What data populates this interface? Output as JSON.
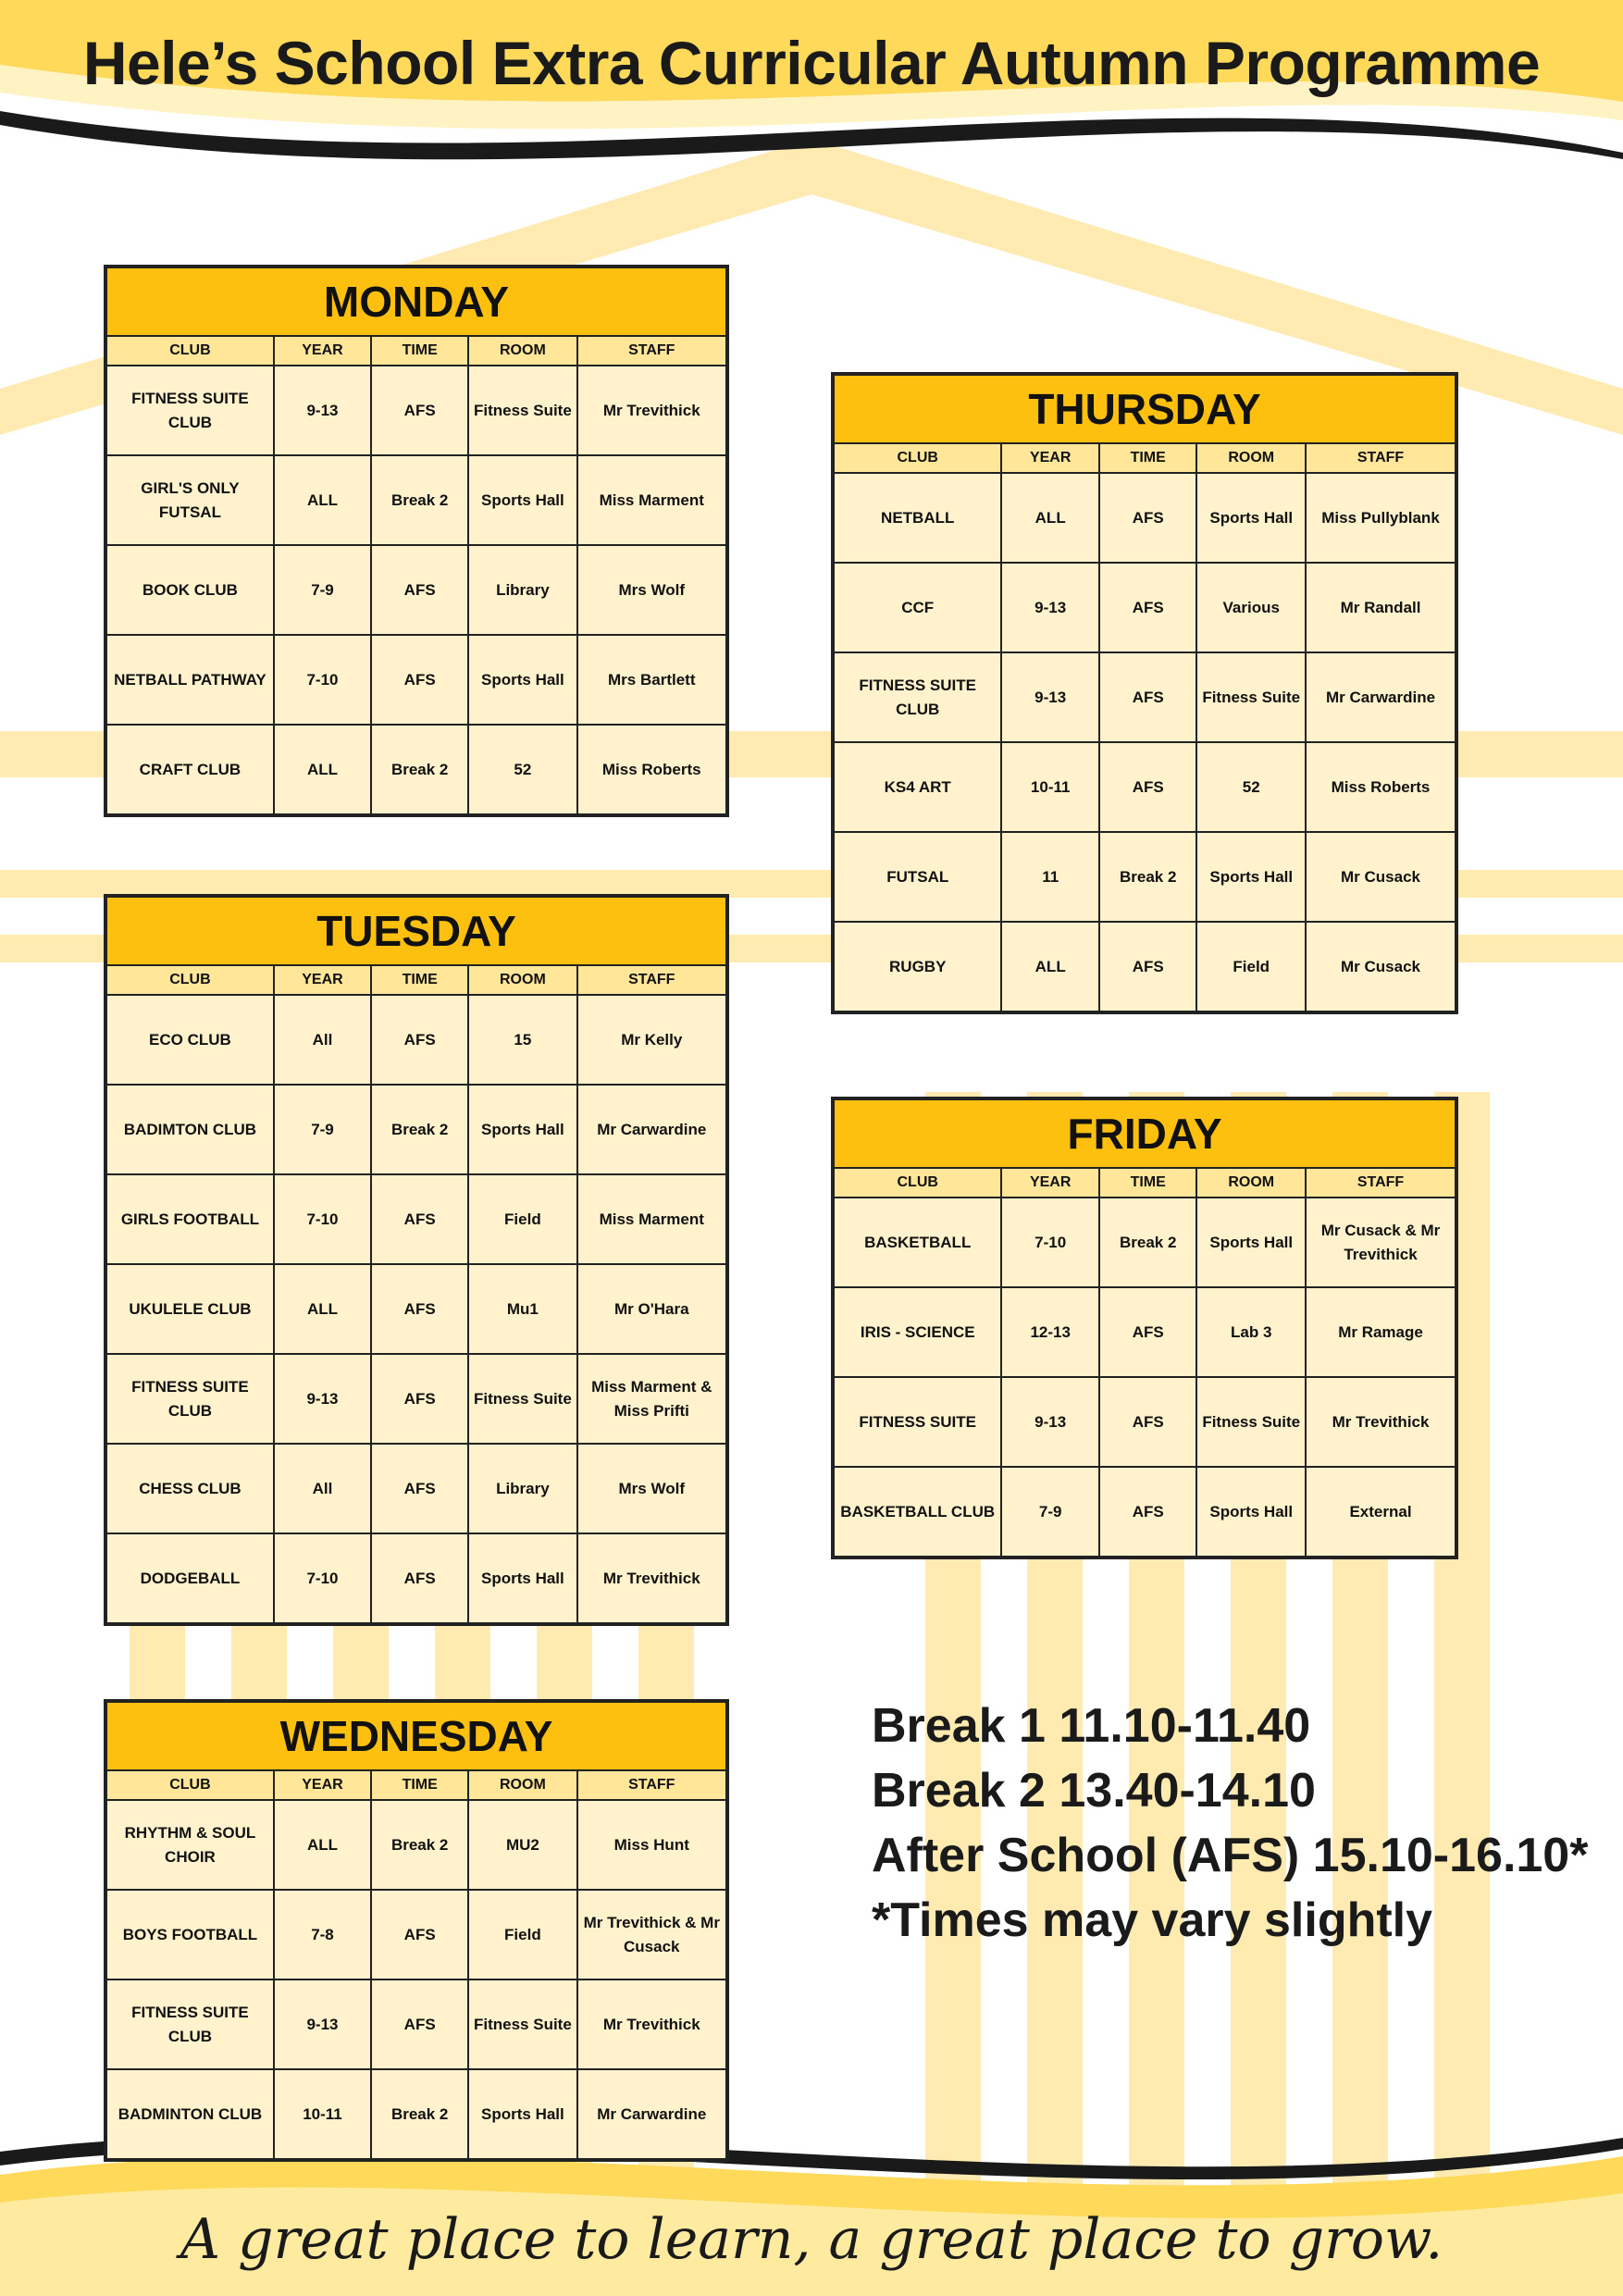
{
  "title": "Hele’s School Extra Curricular Autumn Programme",
  "columns": [
    "CLUB",
    "YEAR",
    "TIME",
    "ROOM",
    "STAFF"
  ],
  "days": [
    {
      "name": "MONDAY",
      "rows": [
        [
          "FITNESS SUITE CLUB",
          "9-13",
          "AFS",
          "Fitness Suite",
          "Mr Trevithick"
        ],
        [
          "GIRL'S ONLY FUTSAL",
          "ALL",
          "Break 2",
          "Sports Hall",
          "Miss Marment"
        ],
        [
          "BOOK CLUB",
          "7-9",
          "AFS",
          "Library",
          "Mrs Wolf"
        ],
        [
          "NETBALL PATHWAY",
          "7-10",
          "AFS",
          "Sports Hall",
          "Mrs Bartlett"
        ],
        [
          "CRAFT CLUB",
          "ALL",
          "Break 2",
          "52",
          "Miss Roberts"
        ]
      ]
    },
    {
      "name": "TUESDAY",
      "rows": [
        [
          "ECO CLUB",
          "All",
          "AFS",
          "15",
          "Mr Kelly"
        ],
        [
          "BADIMTON CLUB",
          "7-9",
          "Break 2",
          "Sports Hall",
          "Mr Carwardine"
        ],
        [
          "GIRLS FOOTBALL",
          "7-10",
          "AFS",
          "Field",
          "Miss Marment"
        ],
        [
          "UKULELE CLUB",
          "ALL",
          "AFS",
          "Mu1",
          "Mr O'Hara"
        ],
        [
          "FITNESS SUITE CLUB",
          "9-13",
          "AFS",
          "Fitness Suite",
          "Miss Marment & Miss Prifti"
        ],
        [
          "CHESS CLUB",
          "All",
          "AFS",
          "Library",
          "Mrs Wolf"
        ],
        [
          "DODGEBALL",
          "7-10",
          "AFS",
          "Sports Hall",
          "Mr Trevithick"
        ]
      ]
    },
    {
      "name": "WEDNESDAY",
      "rows": [
        [
          "RHYTHM & SOUL CHOIR",
          "ALL",
          "Break 2",
          "MU2",
          "Miss Hunt"
        ],
        [
          "BOYS FOOTBALL",
          "7-8",
          "AFS",
          "Field",
          "Mr Trevithick & Mr Cusack"
        ],
        [
          "FITNESS SUITE CLUB",
          "9-13",
          "AFS",
          "Fitness Suite",
          "Mr Trevithick"
        ],
        [
          "BADMINTON CLUB",
          "10-11",
          "Break 2",
          "Sports Hall",
          "Mr Carwardine"
        ]
      ]
    },
    {
      "name": "THURSDAY",
      "rows": [
        [
          "NETBALL",
          "ALL",
          "AFS",
          "Sports Hall",
          "Miss Pullyblank"
        ],
        [
          "CCF",
          "9-13",
          "AFS",
          "Various",
          "Mr Randall"
        ],
        [
          "FITNESS SUITE CLUB",
          "9-13",
          "AFS",
          "Fitness Suite",
          "Mr Carwardine"
        ],
        [
          "KS4 ART",
          "10-11",
          "AFS",
          "52",
          "Miss Roberts"
        ],
        [
          "FUTSAL",
          "11",
          "Break 2",
          "Sports Hall",
          "Mr Cusack"
        ],
        [
          "RUGBY",
          "ALL",
          "AFS",
          "Field",
          "Mr Cusack"
        ]
      ]
    },
    {
      "name": "FRIDAY",
      "rows": [
        [
          "BASKETBALL",
          "7-10",
          "Break 2",
          "Sports Hall",
          "Mr Cusack & Mr Trevithick"
        ],
        [
          "IRIS - SCIENCE",
          "12-13",
          "AFS",
          "Lab 3",
          "Mr Ramage"
        ],
        [
          "FITNESS SUITE",
          "9-13",
          "AFS",
          "Fitness Suite",
          "Mr Trevithick"
        ],
        [
          "BASKETBALL CLUB",
          "7-9",
          "AFS",
          "Sports Hall",
          "External"
        ]
      ]
    }
  ],
  "times": [
    "Break 1 11.10-11.40",
    "Break 2 13.40-14.10",
    "After School (AFS) 15.10-16.10*",
    "*Times may vary slightly"
  ],
  "slogan": "A great place to learn, a great place to grow.",
  "colors": {
    "accent": "#fec00f",
    "header": "#ffe699",
    "cell": "#fff2cc",
    "background_motif": "#ffe08a"
  }
}
